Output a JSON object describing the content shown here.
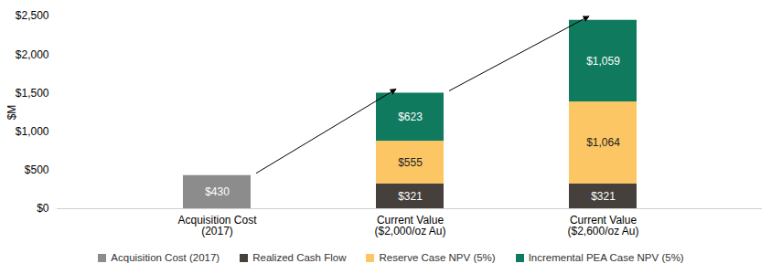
{
  "chart_data": {
    "type": "bar",
    "stacked": true,
    "data_labels": true,
    "grid": false,
    "legend": "bottom",
    "y_label": "$M",
    "categories": [
      "Acquisition Cost\n(2017)",
      "Current Value\n($2,000/oz Au)",
      "Current Value\n($2,600/oz Au)"
    ],
    "ylim": [
      0,
      2500
    ],
    "yticks": [
      {
        "value": 0,
        "label": "$0"
      },
      {
        "value": 500,
        "label": "$500"
      },
      {
        "value": 1000,
        "label": "$1,000"
      },
      {
        "value": 1500,
        "label": "$1,500"
      },
      {
        "value": 2000,
        "label": "$2,000"
      },
      {
        "value": 2500,
        "label": "$2,500"
      }
    ],
    "series": [
      {
        "name": "Acquisition Cost (2017)",
        "color": "#8c8c8c",
        "values": [
          430,
          null,
          null
        ],
        "value_labels": [
          "$430",
          null,
          null
        ]
      },
      {
        "name": "Realized Cash Flow",
        "color": "#45403b",
        "values": [
          null,
          321,
          321
        ],
        "value_labels": [
          null,
          "$321",
          "$321"
        ]
      },
      {
        "name": "Reserve Case NPV (5%)",
        "color": "#fcc665",
        "values": [
          null,
          555,
          1064
        ],
        "value_labels": [
          null,
          "$555",
          "$1,064"
        ]
      },
      {
        "name": "Incremental PEA Case NPV (5%)",
        "color": "#0f7a5e",
        "values": [
          null,
          623,
          1059
        ],
        "value_labels": [
          null,
          "$623",
          "$1,059"
        ]
      }
    ]
  }
}
